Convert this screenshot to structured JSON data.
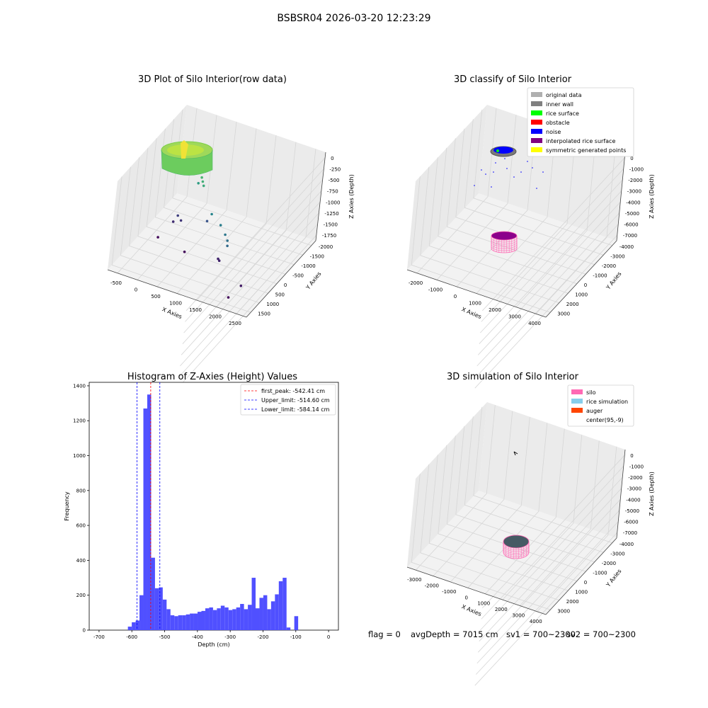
{
  "figure": {
    "suptitle": "BSBSR04 2026-03-20 12:23:29",
    "status": {
      "flag": "flag = 0",
      "avg": "avgDepth = 7015 cm",
      "sv1": "sv1 = 700~2300",
      "sv2": "sv2 = 700~2300"
    }
  },
  "colors": {
    "hist_bar": "#5050ff",
    "peak_line": "#ff0000",
    "limit_line": "#0000ff",
    "pane": "#f2f2f2",
    "grid": "#d9d9d9",
    "silo_pink": "#ff69b4",
    "surface_purple": "#8b008b",
    "rice_slate": "#455a64"
  },
  "chart_data": [
    {
      "type": "scatter3d",
      "title": "3D Plot of Silo Interior(row data)",
      "xlabel": "X Axies",
      "ylabel": "Y Axies",
      "zlabel": "Z Axies (Depth)",
      "x_ticks": [
        "-500",
        "0",
        "500",
        "1000",
        "1500",
        "2000",
        "2500"
      ],
      "y_ticks": [
        "-2000",
        "-1500",
        "-1000",
        "-500",
        "0",
        "500",
        "1000",
        "1500"
      ],
      "z_ticks": [
        "0",
        "-250",
        "-500",
        "-750",
        "-1000",
        "-1250",
        "-1500",
        "-1750"
      ],
      "xlim": [
        -600,
        2600
      ],
      "ylim": [
        -2000,
        1600
      ],
      "zlim": [
        -1850,
        50
      ],
      "colormap": "viridis",
      "main_cluster": {
        "description_shown": "dense ring of points near top",
        "z_range": [
          -550,
          -300
        ]
      },
      "points": [
        {
          "x": 400,
          "y": 300,
          "z": -600
        },
        {
          "x": 450,
          "y": 250,
          "z": -650
        },
        {
          "x": 500,
          "y": 200,
          "z": -700
        },
        {
          "x": 300,
          "y": 400,
          "z": -800
        },
        {
          "x": 900,
          "y": -200,
          "z": -1000
        },
        {
          "x": 1200,
          "y": -400,
          "z": -1050
        },
        {
          "x": 1400,
          "y": -600,
          "z": -1100
        },
        {
          "x": 1500,
          "y": -700,
          "z": -1150
        },
        {
          "x": 1550,
          "y": -800,
          "z": -1200
        },
        {
          "x": 700,
          "y": 100,
          "z": -1350
        },
        {
          "x": 0,
          "y": 200,
          "z": -1500
        },
        {
          "x": 100,
          "y": 150,
          "z": -1550
        },
        {
          "x": -50,
          "y": 100,
          "z": -1600
        },
        {
          "x": 1300,
          "y": -600,
          "z": -1650
        },
        {
          "x": 1350,
          "y": -650,
          "z": -1650
        },
        {
          "x": 2100,
          "y": -1200,
          "z": -1700
        },
        {
          "x": -200,
          "y": -300,
          "z": -1800
        },
        {
          "x": 500,
          "y": -500,
          "z": -1800
        },
        {
          "x": 2000,
          "y": -1600,
          "z": -1800
        }
      ]
    },
    {
      "type": "scatter3d",
      "title": "3D classify of Silo Interior",
      "xlabel": "X Axies",
      "ylabel": "Y Axies",
      "zlabel": "Z Axies (Depth)",
      "x_ticks": [
        "-2000",
        "-1000",
        "0",
        "1000",
        "2000",
        "3000",
        "4000"
      ],
      "y_ticks": [
        "-4000",
        "-3000",
        "-2000",
        "-1000",
        "0",
        "1000",
        "2000",
        "3000"
      ],
      "z_ticks": [
        "0",
        "-1000",
        "-2000",
        "-3000",
        "-4000",
        "-5000",
        "-6000",
        "-7000"
      ],
      "legend": [
        {
          "label": "original data",
          "color": "#b0b0b0"
        },
        {
          "label": "inner wall",
          "color": "#808080"
        },
        {
          "label": "rice surface",
          "color": "#00ff00"
        },
        {
          "label": "obstacle",
          "color": "#ff0000"
        },
        {
          "label": "noise",
          "color": "#0000ff"
        },
        {
          "label": "interpolated rice surface",
          "color": "#800080"
        },
        {
          "label": "symmetric generated points",
          "color": "#ffff00"
        }
      ],
      "legend_loc": "upper right"
    },
    {
      "type": "bar",
      "title": "Histogram of Z-Axies (Height) Values",
      "xlabel": "Depth (cm)",
      "ylabel": "Frequency",
      "xlim": [
        -730,
        30
      ],
      "ylim": [
        0,
        1420
      ],
      "x_ticks": [
        -700,
        -600,
        -500,
        -400,
        -300,
        -200,
        -100,
        0
      ],
      "y_ticks": [
        0,
        200,
        400,
        600,
        800,
        1000,
        1200,
        1400
      ],
      "bin_start": -612,
      "bin_width": 11.8,
      "values": [
        20,
        45,
        55,
        200,
        1270,
        1350,
        415,
        240,
        245,
        175,
        120,
        85,
        80,
        85,
        85,
        90,
        95,
        95,
        105,
        110,
        125,
        130,
        115,
        125,
        140,
        130,
        115,
        120,
        130,
        150,
        120,
        145,
        300,
        125,
        185,
        200,
        120,
        165,
        205,
        280,
        300,
        15,
        0,
        80
      ],
      "vlines": [
        {
          "label": "first_peak: -542.41 cm",
          "x": -542.41,
          "color": "#ff0000"
        },
        {
          "label": "Upper_limit: -514.60 cm",
          "x": -514.6,
          "color": "#0000ff"
        },
        {
          "label": "Lower_limit: -584.14 cm",
          "x": -584.14,
          "color": "#0000ff"
        }
      ],
      "legend_loc": "upper right"
    },
    {
      "type": "scatter3d",
      "title": "3D simulation of Silo Interior",
      "xlabel": "X Axies",
      "ylabel": "Y Axies",
      "zlabel": "Z Axies (Depth)",
      "x_ticks": [
        "-3000",
        "-2000",
        "-1000",
        "0",
        "1000",
        "2000",
        "3000",
        "4000"
      ],
      "y_ticks": [
        "-4000",
        "-3000",
        "-2000",
        "-1000",
        "0",
        "1000",
        "2000",
        "3000"
      ],
      "z_ticks": [
        "0",
        "-1000",
        "-2000",
        "-3000",
        "-4000",
        "-5000",
        "-6000",
        "-7000"
      ],
      "legend": [
        {
          "label": "silo",
          "color": "#ff69b4"
        },
        {
          "label": "rice simulation",
          "color": "#87ceeb"
        },
        {
          "label": "auger",
          "color": "#ff4500"
        },
        {
          "label": "center(95,-9)",
          "color": ""
        }
      ],
      "legend_loc": "upper right"
    }
  ]
}
